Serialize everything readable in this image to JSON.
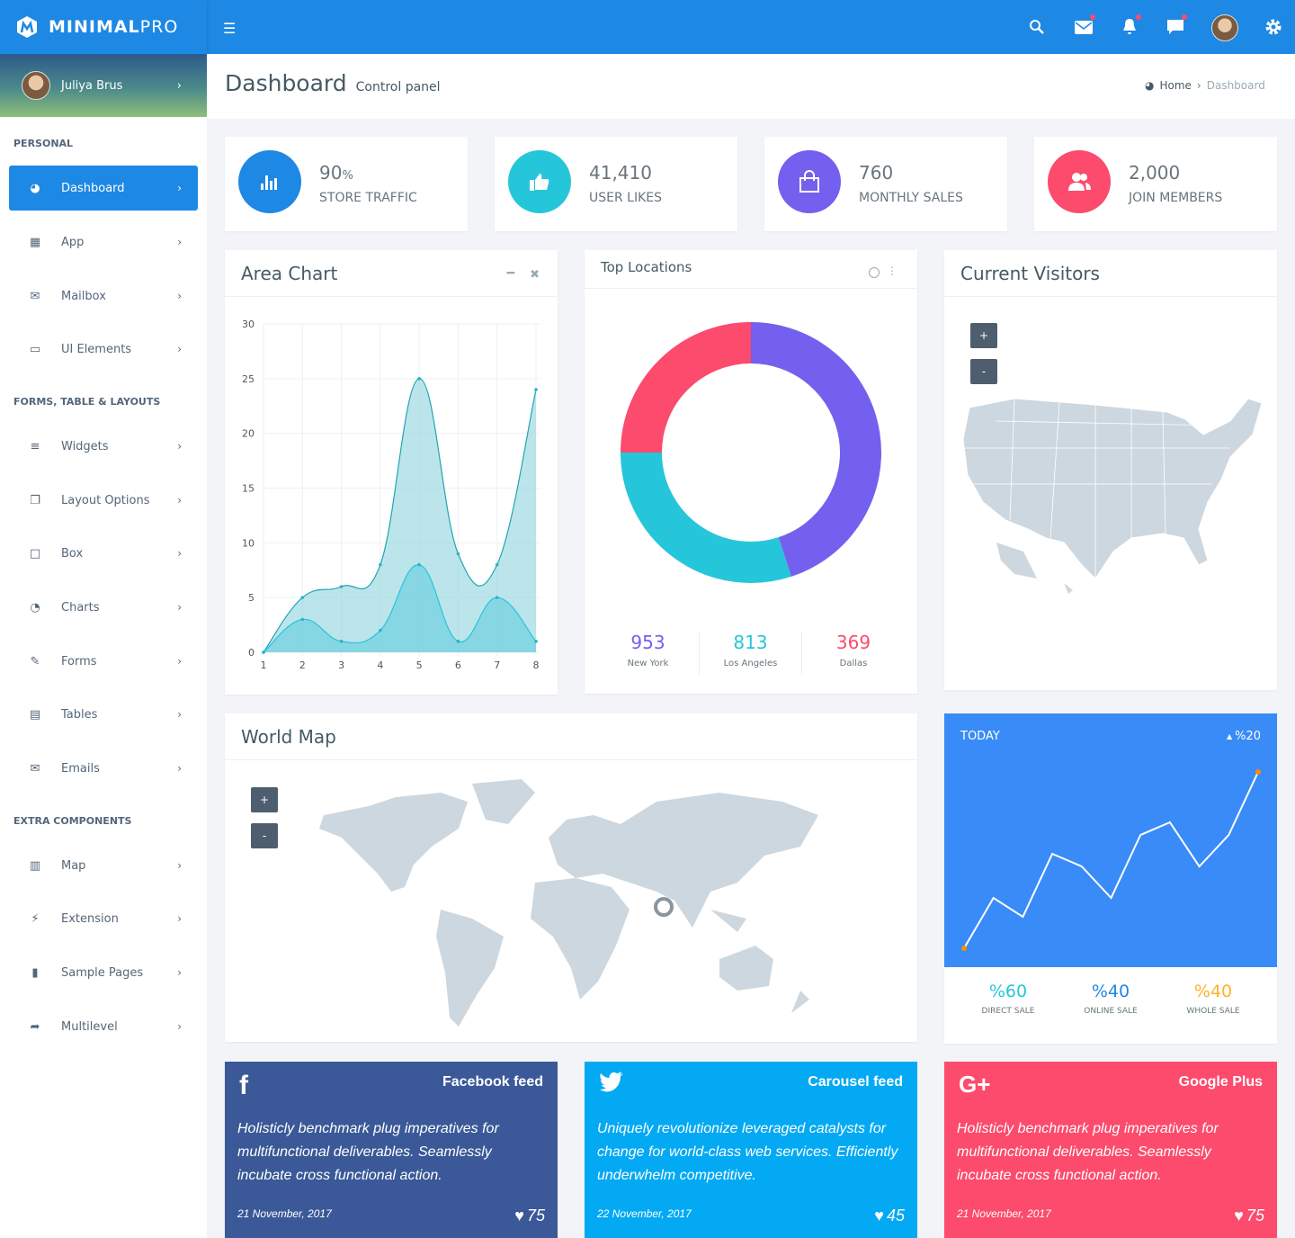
{
  "header": {
    "brand_bold": "MINIMAL",
    "brand_light": "PRO",
    "icons": [
      "search-icon",
      "mail-icon",
      "bell-icon",
      "chat-icon",
      "avatar",
      "gear-icon"
    ]
  },
  "user": {
    "name": "Juliya Brus"
  },
  "page": {
    "title": "Dashboard",
    "subtitle": "Control panel",
    "breadcrumb": [
      "Home",
      "Dashboard"
    ]
  },
  "sidebar": {
    "sections": [
      "PERSONAL",
      "FORMS, TABLE & LAYOUTS",
      "EXTRA COMPONENTS"
    ],
    "items": [
      {
        "label": "Dashboard",
        "icon": "dashboard-icon",
        "active": true
      },
      {
        "label": "App",
        "icon": "grid-icon"
      },
      {
        "label": "Mailbox",
        "icon": "envelope-icon"
      },
      {
        "label": "UI Elements",
        "icon": "laptop-icon"
      },
      {
        "label": "Widgets",
        "icon": "bars-icon"
      },
      {
        "label": "Layout Options",
        "icon": "copy-icon"
      },
      {
        "label": "Box",
        "icon": "square-icon"
      },
      {
        "label": "Charts",
        "icon": "pie-chart-icon"
      },
      {
        "label": "Forms",
        "icon": "edit-icon"
      },
      {
        "label": "Tables",
        "icon": "table-icon"
      },
      {
        "label": "Emails",
        "icon": "envelope-open-icon"
      },
      {
        "label": "Map",
        "icon": "map-icon"
      },
      {
        "label": "Extension",
        "icon": "plug-icon"
      },
      {
        "label": "Sample Pages",
        "icon": "file-icon"
      },
      {
        "label": "Multilevel",
        "icon": "share-icon"
      }
    ]
  },
  "stats": [
    {
      "value": "90",
      "unit": "%",
      "label": "STORE TRAFFIC",
      "color": "#1e88e5",
      "icon": "bar-chart-icon"
    },
    {
      "value": "41,410",
      "unit": "",
      "label": "USER LIKES",
      "color": "#26c6da",
      "icon": "thumbs-up-icon"
    },
    {
      "value": "760",
      "unit": "",
      "label": "MONTHLY SALES",
      "color": "#7460ee",
      "icon": "shopping-bag-icon"
    },
    {
      "value": "2,000",
      "unit": "",
      "label": "JOIN MEMBERS",
      "color": "#fc4b6c",
      "icon": "users-icon"
    }
  ],
  "area_card": {
    "title": "Area Chart"
  },
  "locations": {
    "title": "Top Locations",
    "stats": [
      {
        "value": "953",
        "label": "New York",
        "color": "#7460ee"
      },
      {
        "value": "813",
        "label": "Los Angeles",
        "color": "#26c6da"
      },
      {
        "value": "369",
        "label": "Dallas",
        "color": "#fc4b6c"
      }
    ]
  },
  "visitors": {
    "title": "Current Visitors",
    "zoom_in": "+",
    "zoom_out": "-"
  },
  "worldmap": {
    "title": "World Map",
    "zoom_in": "+",
    "zoom_out": "-"
  },
  "today": {
    "title": "TODAY",
    "change": "%20",
    "stats": [
      {
        "value": "%60",
        "label": "DIRECT SALE",
        "color": "#26c6da"
      },
      {
        "value": "%40",
        "label": "ONLINE SALE",
        "color": "#1e88e5"
      },
      {
        "value": "%40",
        "label": "WHOLE SALE",
        "color": "#ffb22b"
      }
    ]
  },
  "feeds": [
    {
      "title": "Facebook feed",
      "icon": "facebook-icon",
      "text": "Holisticly benchmark plug imperatives for multifunctional deliverables. Seamlessly incubate cross functional action.",
      "date": "21 November, 2017",
      "likes": "75",
      "color": "#3b5998"
    },
    {
      "title": "Carousel feed",
      "icon": "twitter-icon",
      "text": "Uniquely revolutionize leveraged catalysts for change for world-class web services. Efficiently underwhelm competitive.",
      "date": "22 November, 2017",
      "likes": "45",
      "color": "#03a9f3"
    },
    {
      "title": "Google Plus",
      "icon": "google-plus-icon",
      "text": "Holisticly benchmark plug imperatives for multifunctional deliverables. Seamlessly incubate cross functional action.",
      "date": "21 November, 2017",
      "likes": "75",
      "color": "#fc4b6c"
    }
  ],
  "chart_data": [
    {
      "type": "area",
      "x": [
        1,
        2,
        3,
        4,
        5,
        6,
        7,
        8
      ],
      "series": [
        {
          "values": [
            0,
            5,
            6,
            8,
            25,
            9,
            8,
            24
          ]
        },
        {
          "values": [
            0,
            3,
            1,
            2,
            8,
            1,
            5,
            1
          ]
        }
      ],
      "ylim": [
        0,
        30
      ],
      "yticks": [
        0,
        5,
        10,
        15,
        20,
        25,
        30
      ],
      "grid": true,
      "colors": [
        "#8fd3dd",
        "#6fd0e0"
      ]
    },
    {
      "type": "pie",
      "variant": "donut",
      "values": [
        45,
        30,
        25
      ],
      "colors": [
        "#7460ee",
        "#26c6da",
        "#fc4b6c"
      ]
    },
    {
      "type": "line",
      "values": [
        3,
        11,
        8,
        18,
        16,
        11,
        21,
        23,
        16,
        21,
        31
      ],
      "ylim": [
        0,
        40
      ],
      "color": "#ffffff",
      "marker_color": "#ff8c00"
    }
  ]
}
